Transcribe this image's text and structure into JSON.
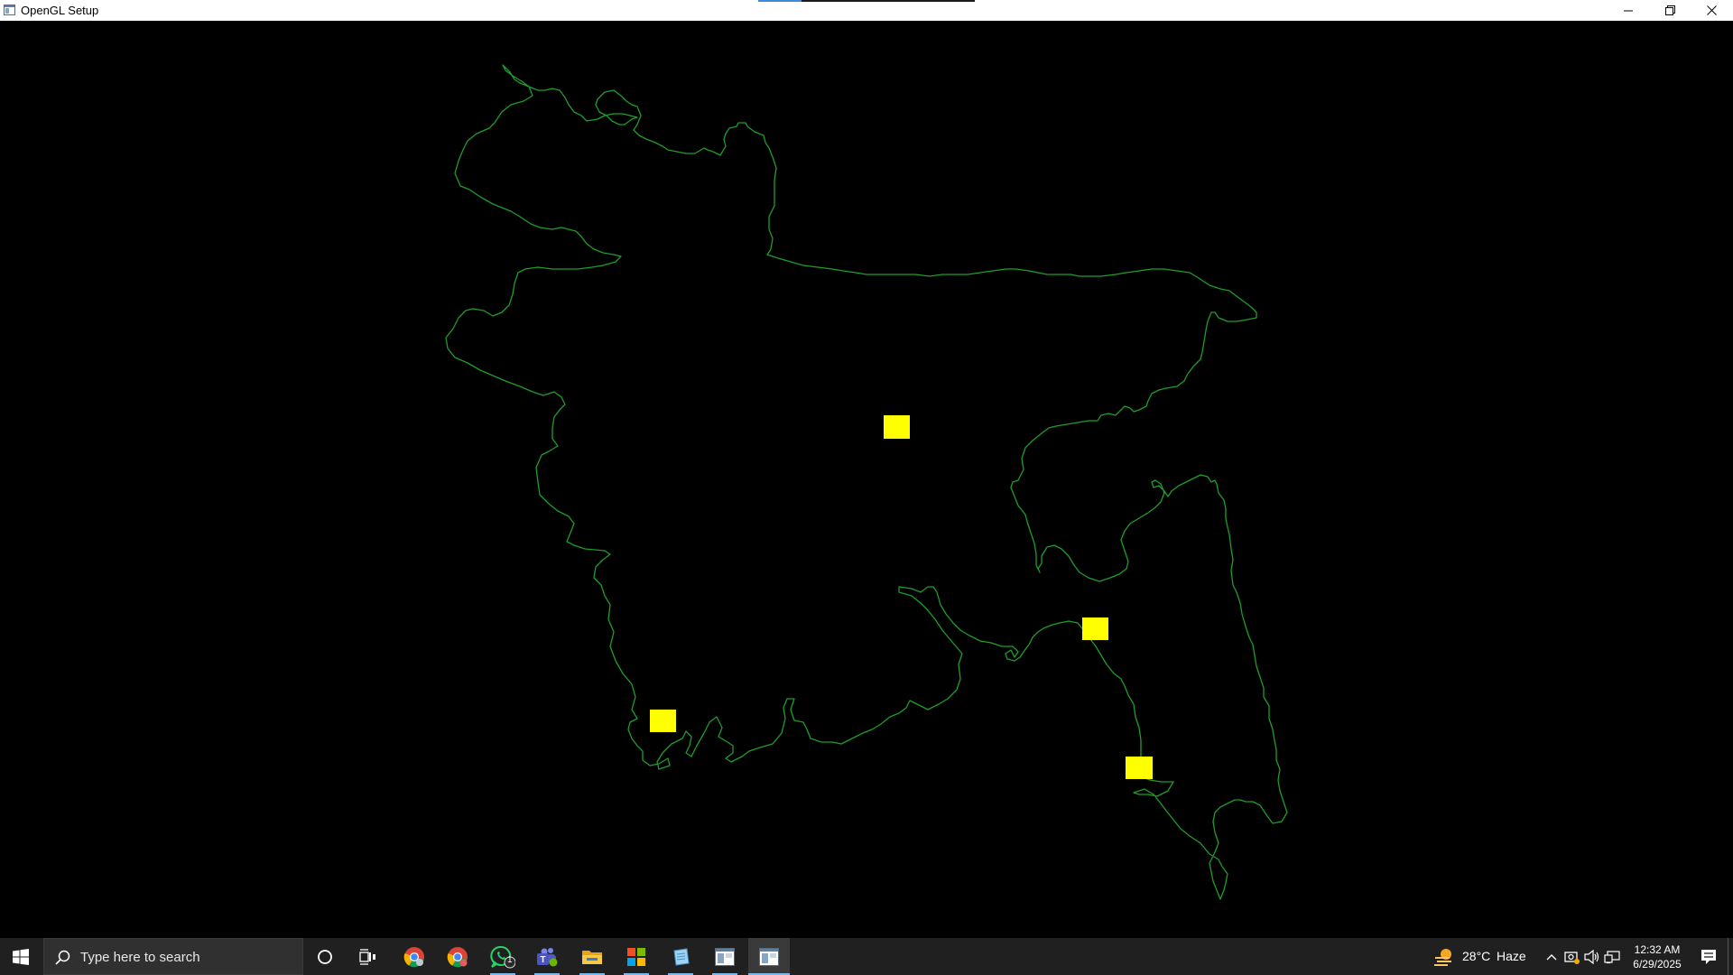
{
  "window": {
    "title": "OpenGL Setup",
    "controls": {
      "minimize": "minimize-icon",
      "restore": "restore-icon",
      "close": "close-icon"
    }
  },
  "scene": {
    "background": "#000000",
    "outline_color": "#1f9d2a",
    "marker_color": "#ffff00",
    "markers": 4
  },
  "taskbar": {
    "start": "windows-logo-icon",
    "search_placeholder": "Type here to search",
    "pinned": [
      {
        "name": "cortana-icon",
        "active": false
      },
      {
        "name": "task-view-icon",
        "active": false
      },
      {
        "name": "chrome-icon",
        "active": false
      },
      {
        "name": "chrome-profile-icon",
        "active": false
      },
      {
        "name": "whatsapp-icon",
        "active": true,
        "badge": "1"
      },
      {
        "name": "teams-icon",
        "active": true
      },
      {
        "name": "file-explorer-icon",
        "active": true
      },
      {
        "name": "microsoft-store-icon",
        "active": true
      },
      {
        "name": "notepad-app-icon",
        "active": true
      },
      {
        "name": "opengl-app-icon",
        "active": true
      },
      {
        "name": "opengl-setup-window-icon",
        "active": true
      }
    ],
    "weather": {
      "temperature": "28°C",
      "condition": "Haze"
    },
    "clock": {
      "time": "12:32 AM",
      "date": "6/29/2025"
    },
    "accent": "#76b9ed"
  }
}
